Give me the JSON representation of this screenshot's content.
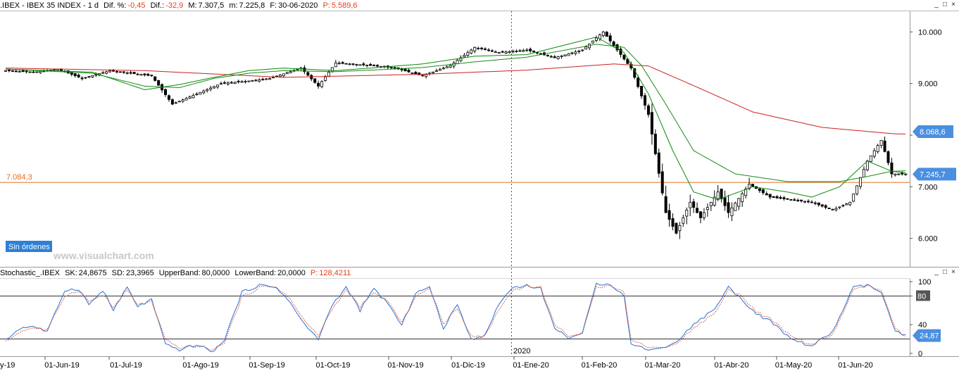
{
  "main_header": {
    "symbol": ".IBEX - IBEX 35 INDEX - 1 d",
    "dif_pct_label": "Dif. %:",
    "dif_pct": "-0,45",
    "dif_label": "Dif.:",
    "dif": "-32,9",
    "max_label": "M:",
    "max": "7.307,5",
    "min_label": "m:",
    "min": "7.225,8",
    "date_label": "F:",
    "date": "30-06-2020",
    "p_label": "P:",
    "p": "5.589,6"
  },
  "stoch_header": {
    "name": "Stochastic_.IBEX",
    "sk_label": "SK:",
    "sk": "24,8675",
    "sd_label": "SD:",
    "sd": "23,3965",
    "upper_label": "UpperBand:",
    "upper": "80,0000",
    "lower_label": "LowerBand:",
    "lower": "20,0000",
    "p_label": "P:",
    "p": "128,4211"
  },
  "window_buttons": [
    "_",
    "□",
    "×"
  ],
  "orders_badge": "Sin órdenes",
  "watermark": "www.visualchart.com",
  "year_marker": "2020",
  "chart_data": [
    {
      "type": "candlestick",
      "name": "IBEX 35 INDEX",
      "x_tick_labels": [
        "01-Jun-19",
        "01-Jul-19",
        "01-Ago-19",
        "01-Sep-19",
        "01-Oct-19",
        "01-Nov-19",
        "01-Dic-19",
        "01-Ene-20",
        "01-Feb-20",
        "01-Mar-20",
        "01-Abr-20",
        "01-May-20",
        "01-Jun-20"
      ],
      "x_edge_label": "y-19",
      "y_ticks": [
        "10.000",
        "9.000",
        "8.000",
        "7.000",
        "6.000"
      ],
      "y_tick_values": [
        10000,
        9000,
        8000,
        7000,
        6000
      ],
      "ylim": [
        5450,
        10400
      ],
      "horizontal_line": {
        "label": "7.084,3",
        "value": 7084.3,
        "color": "#e07020"
      },
      "price_badge": {
        "label": "7.245,7",
        "value": 7245.7
      },
      "ma_badge": {
        "label": "8.068,6",
        "value": 8068.6
      },
      "moving_averages": [
        {
          "color": "#cc2020",
          "anchors": [
            [
              0,
              9300
            ],
            [
              40,
              9250
            ],
            [
              80,
              9120
            ],
            [
              120,
              9180
            ],
            [
              150,
              9260
            ],
            [
              175,
              9380
            ],
            [
              185,
              9340
            ],
            [
              200,
              8900
            ],
            [
              215,
              8450
            ],
            [
              235,
              8150
            ],
            [
              255,
              8030
            ],
            [
              259,
              8020
            ]
          ]
        },
        {
          "color": "#1a8a1a",
          "anchors": [
            [
              0,
              9280
            ],
            [
              25,
              9200
            ],
            [
              40,
              8950
            ],
            [
              50,
              8920
            ],
            [
              60,
              9100
            ],
            [
              70,
              9200
            ],
            [
              80,
              9250
            ],
            [
              95,
              9230
            ],
            [
              105,
              9260
            ],
            [
              120,
              9310
            ],
            [
              135,
              9420
            ],
            [
              150,
              9510
            ],
            [
              170,
              9760
            ],
            [
              178,
              9700
            ],
            [
              183,
              9350
            ],
            [
              190,
              8600
            ],
            [
              198,
              7700
            ],
            [
              210,
              7250
            ],
            [
              225,
              7100
            ],
            [
              240,
              7100
            ],
            [
              248,
              7200
            ],
            [
              255,
              7300
            ],
            [
              259,
              7310
            ]
          ]
        },
        {
          "color": "#0a8a0a",
          "anchors": [
            [
              0,
              9280
            ],
            [
              25,
              9220
            ],
            [
              40,
              8880
            ],
            [
              50,
              8980
            ],
            [
              60,
              9120
            ],
            [
              70,
              9250
            ],
            [
              80,
              9300
            ],
            [
              95,
              9250
            ],
            [
              105,
              9300
            ],
            [
              120,
              9380
            ],
            [
              135,
              9530
            ],
            [
              150,
              9560
            ],
            [
              170,
              9900
            ],
            [
              178,
              9600
            ],
            [
              185,
              8800
            ],
            [
              192,
              7700
            ],
            [
              198,
              6900
            ],
            [
              205,
              6750
            ],
            [
              215,
              7000
            ],
            [
              225,
              6900
            ],
            [
              232,
              6800
            ],
            [
              240,
              7000
            ],
            [
              248,
              7500
            ],
            [
              255,
              7300
            ],
            [
              259,
              7270
            ]
          ]
        }
      ],
      "close_anchors": [
        [
          0,
          9250
        ],
        [
          8,
          9220
        ],
        [
          15,
          9280
        ],
        [
          22,
          9100
        ],
        [
          30,
          9250
        ],
        [
          42,
          9150
        ],
        [
          48,
          8600
        ],
        [
          55,
          8800
        ],
        [
          62,
          9000
        ],
        [
          70,
          9050
        ],
        [
          76,
          9100
        ],
        [
          85,
          9300
        ],
        [
          90,
          8950
        ],
        [
          95,
          9400
        ],
        [
          105,
          9350
        ],
        [
          112,
          9300
        ],
        [
          120,
          9150
        ],
        [
          128,
          9350
        ],
        [
          135,
          9700
        ],
        [
          142,
          9600
        ],
        [
          150,
          9650
        ],
        [
          158,
          9500
        ],
        [
          166,
          9650
        ],
        [
          172,
          10000
        ],
        [
          176,
          9650
        ],
        [
          180,
          9300
        ],
        [
          185,
          8400
        ],
        [
          190,
          6500
        ],
        [
          193,
          6100
        ],
        [
          197,
          6700
        ],
        [
          200,
          6400
        ],
        [
          205,
          6900
        ],
        [
          208,
          6500
        ],
        [
          214,
          7050
        ],
        [
          220,
          6800
        ],
        [
          226,
          6750
        ],
        [
          232,
          6700
        ],
        [
          238,
          6550
        ],
        [
          243,
          6700
        ],
        [
          248,
          7500
        ],
        [
          252,
          7900
        ],
        [
          255,
          7250
        ],
        [
          259,
          7245.7
        ]
      ]
    },
    {
      "type": "line",
      "name": "Stochastic_.IBEX",
      "y_ticks": [
        "100",
        "80",
        "40",
        "0"
      ],
      "y_tick_values": [
        100,
        80,
        40,
        0
      ],
      "ylim": [
        -4,
        104
      ],
      "bands": [
        {
          "label": "80",
          "value": 80
        },
        {
          "label": "20",
          "value": 20
        }
      ],
      "value_badge": {
        "label": "24,87",
        "value": 24.87
      },
      "series": [
        {
          "key": "sk",
          "color": "#2a6fd0",
          "style": "solid",
          "anchors": [
            [
              0,
              18
            ],
            [
              4,
              35
            ],
            [
              8,
              38
            ],
            [
              12,
              30
            ],
            [
              17,
              88
            ],
            [
              21,
              90
            ],
            [
              24,
              68
            ],
            [
              28,
              88
            ],
            [
              31,
              60
            ],
            [
              35,
              92
            ],
            [
              38,
              65
            ],
            [
              42,
              75
            ],
            [
              46,
              12
            ],
            [
              50,
              5
            ],
            [
              55,
              12
            ],
            [
              60,
              2
            ],
            [
              63,
              20
            ],
            [
              68,
              85
            ],
            [
              73,
              95
            ],
            [
              78,
              92
            ],
            [
              82,
              70
            ],
            [
              86,
              40
            ],
            [
              90,
              20
            ],
            [
              94,
              68
            ],
            [
              98,
              92
            ],
            [
              102,
              60
            ],
            [
              106,
              90
            ],
            [
              110,
              70
            ],
            [
              114,
              38
            ],
            [
              118,
              85
            ],
            [
              122,
              92
            ],
            [
              126,
              35
            ],
            [
              130,
              68
            ],
            [
              134,
              20
            ],
            [
              138,
              25
            ],
            [
              142,
              70
            ],
            [
              146,
              92
            ],
            [
              150,
              95
            ],
            [
              154,
              90
            ],
            [
              158,
              35
            ],
            [
              162,
              22
            ],
            [
              166,
              28
            ],
            [
              170,
              97
            ],
            [
              174,
              97
            ],
            [
              178,
              80
            ],
            [
              180,
              12
            ],
            [
              186,
              5
            ],
            [
              192,
              12
            ],
            [
              198,
              40
            ],
            [
              204,
              62
            ],
            [
              208,
              92
            ],
            [
              212,
              75
            ],
            [
              216,
              55
            ],
            [
              220,
              45
            ],
            [
              226,
              20
            ],
            [
              232,
              10
            ],
            [
              238,
              30
            ],
            [
              244,
              92
            ],
            [
              248,
              95
            ],
            [
              252,
              85
            ],
            [
              256,
              30
            ],
            [
              259,
              25
            ]
          ]
        },
        {
          "key": "sd",
          "color": "#d24a2a",
          "style": "dotted",
          "anchors": [
            [
              0,
              16
            ],
            [
              4,
              30
            ],
            [
              8,
              36
            ],
            [
              12,
              32
            ],
            [
              17,
              80
            ],
            [
              21,
              88
            ],
            [
              24,
              72
            ],
            [
              28,
              82
            ],
            [
              31,
              64
            ],
            [
              35,
              88
            ],
            [
              38,
              68
            ],
            [
              42,
              72
            ],
            [
              46,
              18
            ],
            [
              50,
              8
            ],
            [
              55,
              10
            ],
            [
              60,
              5
            ],
            [
              63,
              16
            ],
            [
              68,
              78
            ],
            [
              73,
              92
            ],
            [
              78,
              93
            ],
            [
              82,
              75
            ],
            [
              86,
              45
            ],
            [
              90,
              25
            ],
            [
              94,
              62
            ],
            [
              98,
              88
            ],
            [
              102,
              65
            ],
            [
              106,
              84
            ],
            [
              110,
              73
            ],
            [
              114,
              42
            ],
            [
              118,
              80
            ],
            [
              122,
              90
            ],
            [
              126,
              42
            ],
            [
              130,
              62
            ],
            [
              134,
              25
            ],
            [
              138,
              24
            ],
            [
              142,
              62
            ],
            [
              146,
              88
            ],
            [
              150,
              94
            ],
            [
              154,
              92
            ],
            [
              158,
              40
            ],
            [
              162,
              25
            ],
            [
              166,
              27
            ],
            [
              170,
              92
            ],
            [
              174,
              96
            ],
            [
              178,
              85
            ],
            [
              180,
              18
            ],
            [
              186,
              8
            ],
            [
              192,
              10
            ],
            [
              198,
              35
            ],
            [
              204,
              56
            ],
            [
              208,
              88
            ],
            [
              212,
              80
            ],
            [
              216,
              58
            ],
            [
              220,
              48
            ],
            [
              226,
              24
            ],
            [
              232,
              12
            ],
            [
              238,
              26
            ],
            [
              244,
              88
            ],
            [
              248,
              94
            ],
            [
              252,
              88
            ],
            [
              256,
              34
            ],
            [
              259,
              23
            ]
          ]
        }
      ]
    }
  ]
}
